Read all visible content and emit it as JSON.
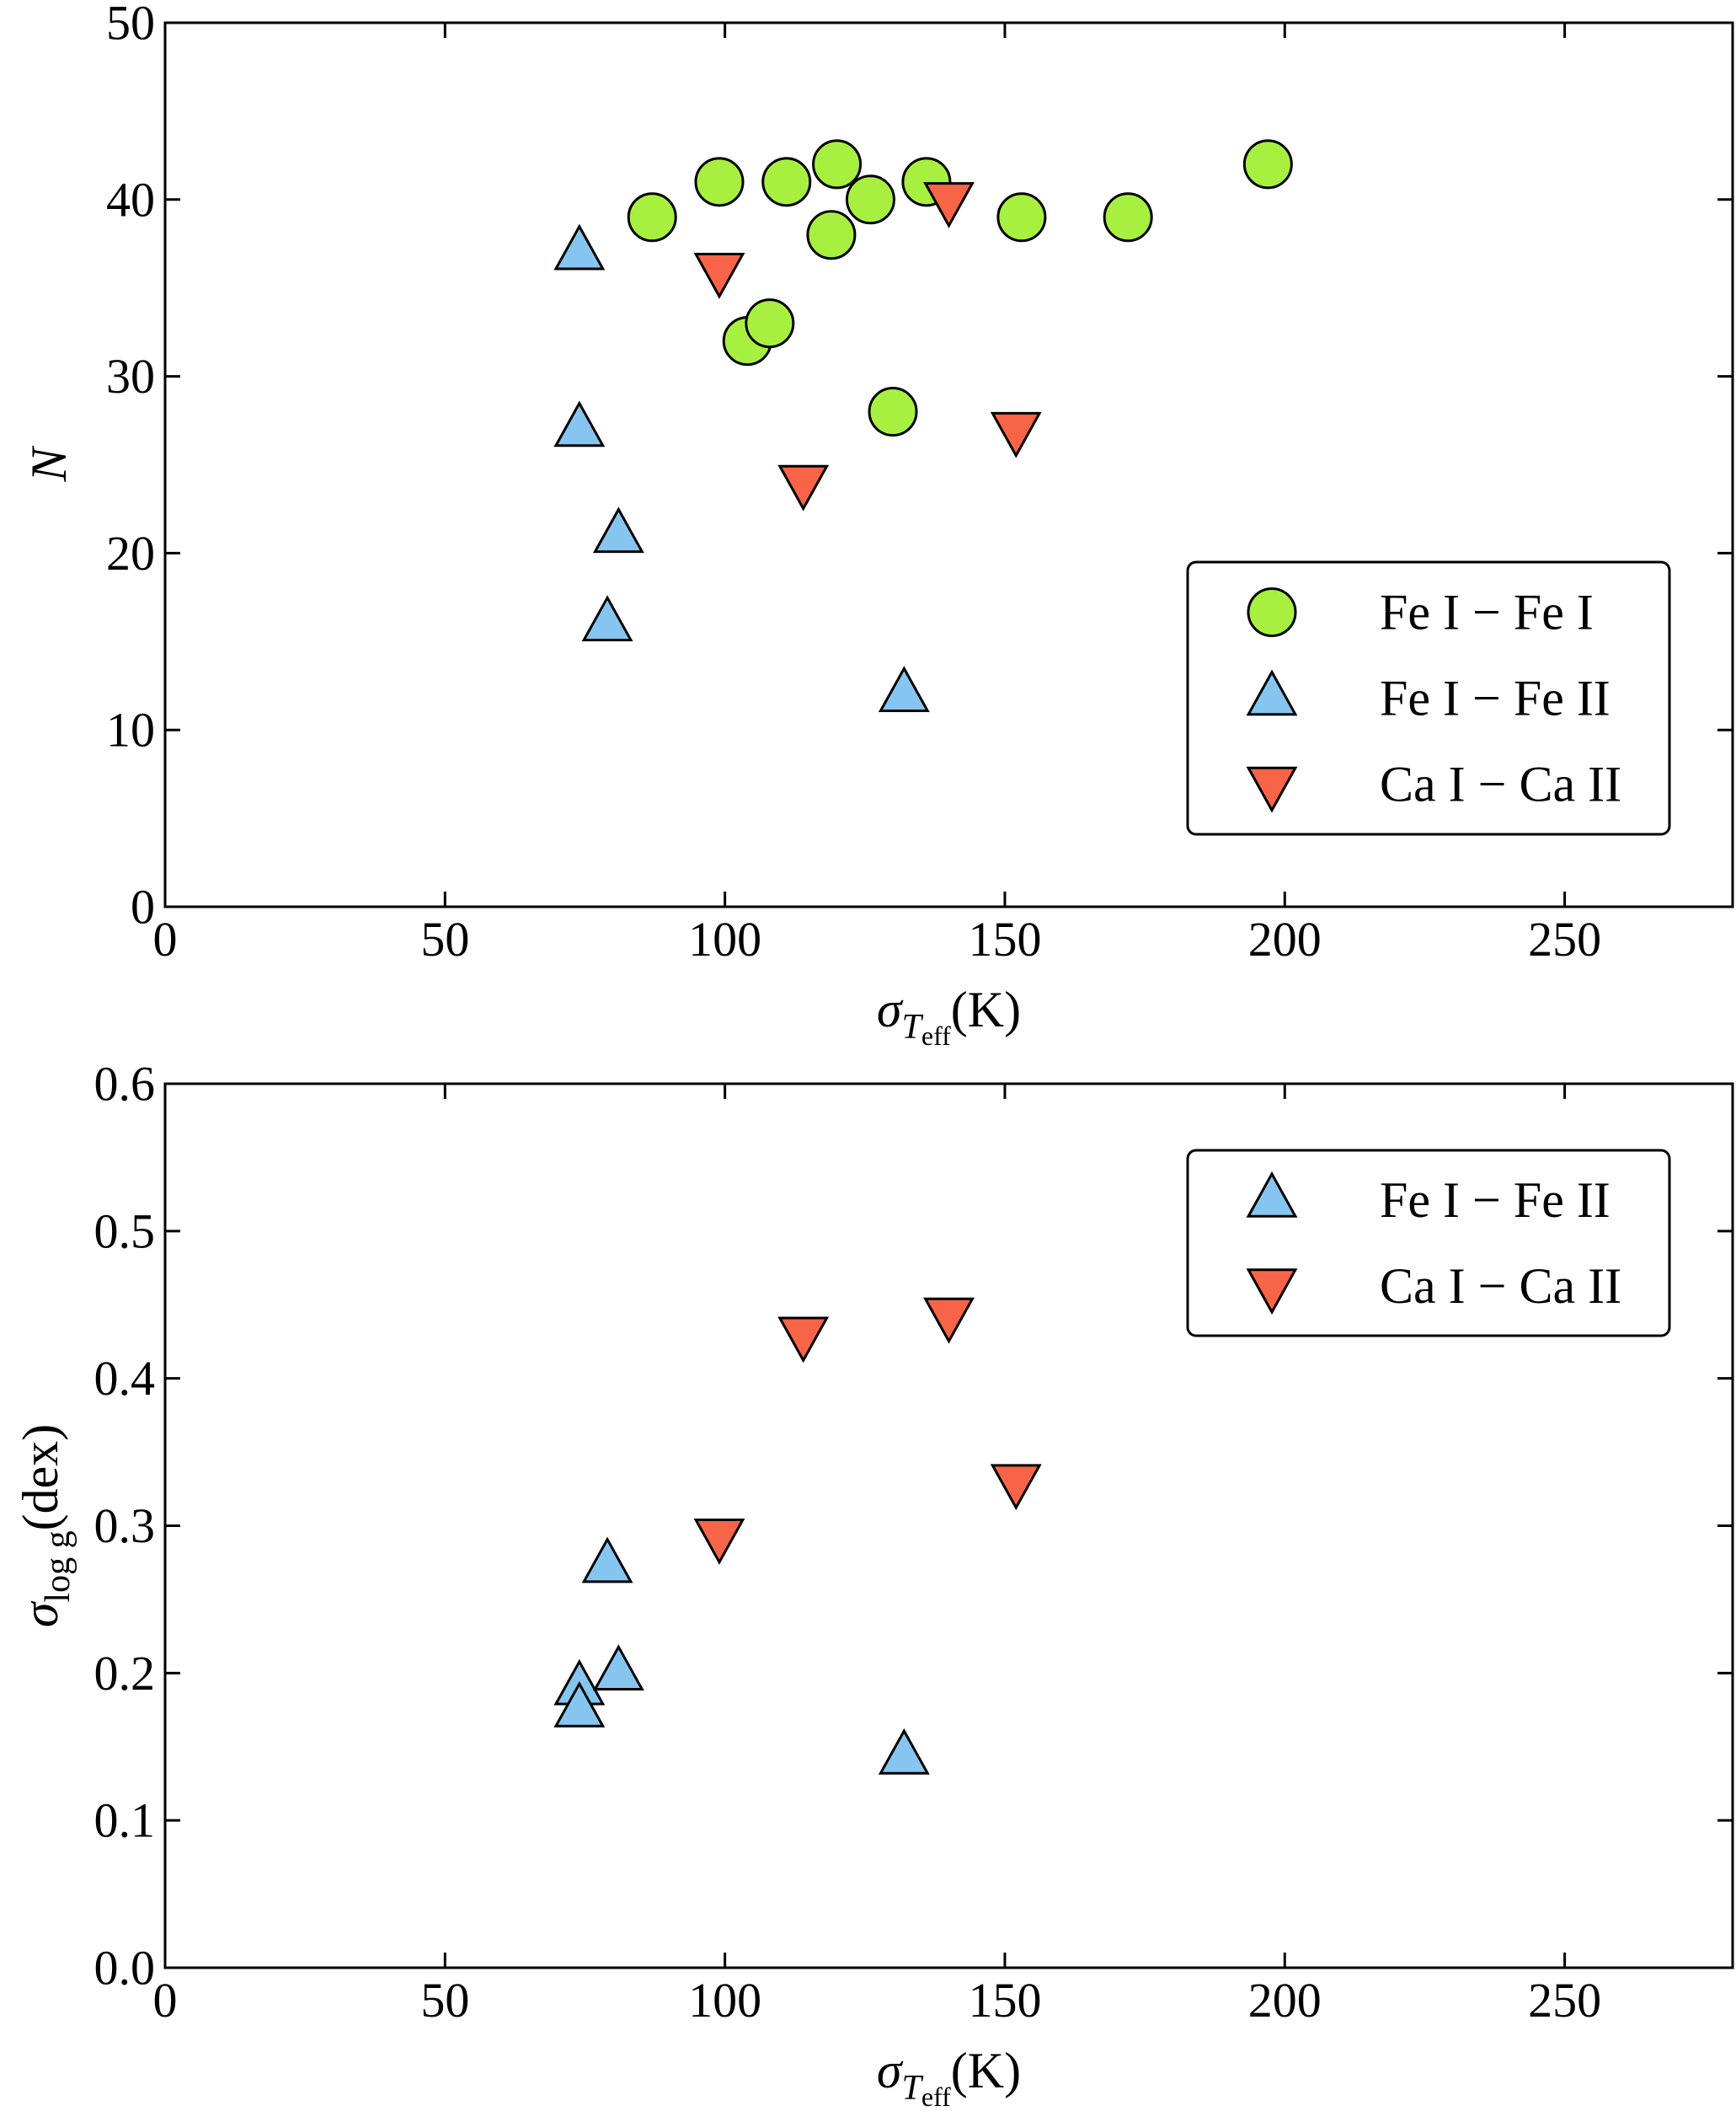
{
  "chart_data": [
    {
      "type": "scatter",
      "id": "top",
      "xlabel": "σ_Teff(K)",
      "xlabel_parts": {
        "sym": "σ",
        "sub": "T",
        "subsub": "eff",
        "unit": "(K)"
      },
      "ylabel": "N",
      "xlim": [
        0,
        280
      ],
      "ylim": [
        0,
        50
      ],
      "xticks": [
        0,
        50,
        100,
        150,
        200,
        250
      ],
      "yticks": [
        0,
        10,
        20,
        30,
        40,
        50
      ],
      "legend_position": "lower-right",
      "series": [
        {
          "name": "Fe I – Fe I",
          "legend_label": "Fe I − Fe I",
          "marker": "circle",
          "color": "#a8f040",
          "points": [
            [
              87,
              39
            ],
            [
              99,
              41
            ],
            [
              104,
              32
            ],
            [
              108,
              33
            ],
            [
              111,
              41
            ],
            [
              119,
              38
            ],
            [
              120,
              42
            ],
            [
              126,
              40
            ],
            [
              130,
              28
            ],
            [
              136,
              41
            ],
            [
              153,
              39
            ],
            [
              172,
              39
            ],
            [
              197,
              42
            ]
          ]
        },
        {
          "name": "Fe I – Fe II",
          "legend_label": "Fe I − Fe II",
          "marker": "triangle-up",
          "color": "#86c5f0",
          "points": [
            [
              74,
              37
            ],
            [
              74,
              27
            ],
            [
              79,
              16
            ],
            [
              81,
              21
            ],
            [
              132,
              12
            ]
          ]
        },
        {
          "name": "Ca I – Ca II",
          "legend_label": "Ca I − Ca II",
          "marker": "triangle-down",
          "color": "#f86448",
          "points": [
            [
              99,
              36
            ],
            [
              114,
              24
            ],
            [
              140,
              40
            ],
            [
              152,
              27
            ]
          ]
        }
      ]
    },
    {
      "type": "scatter",
      "id": "bottom",
      "xlabel": "σ_Teff(K)",
      "xlabel_parts": {
        "sym": "σ",
        "sub": "T",
        "subsub": "eff",
        "unit": "(K)"
      },
      "ylabel": "σ_log g(dex)",
      "ylabel_parts": {
        "sym": "σ",
        "sub": "log g",
        "unit": "(dex)"
      },
      "xlim": [
        0,
        280
      ],
      "ylim": [
        0,
        0.6
      ],
      "xticks": [
        0,
        50,
        100,
        150,
        200,
        250
      ],
      "yticks": [
        0,
        0.1,
        0.2,
        0.3,
        0.4,
        0.5,
        0.6
      ],
      "ytick_labels": [
        "0.0",
        "0.1",
        "0.2",
        "0.3",
        "0.4",
        "0.5",
        "0.6"
      ],
      "legend_position": "upper-right",
      "series": [
        {
          "name": "Fe I – Fe II",
          "legend_label": "Fe I − Fe II",
          "marker": "triangle-up",
          "color": "#86c5f0",
          "points": [
            [
              74,
              0.19
            ],
            [
              74,
              0.175
            ],
            [
              79,
              0.273
            ],
            [
              81,
              0.2
            ],
            [
              132,
              0.143
            ]
          ]
        },
        {
          "name": "Ca I – Ca II",
          "legend_label": "Ca I − Ca II",
          "marker": "triangle-down",
          "color": "#f86448",
          "points": [
            [
              99,
              0.293
            ],
            [
              114,
              0.43
            ],
            [
              140,
              0.443
            ],
            [
              152,
              0.33
            ]
          ]
        }
      ]
    }
  ]
}
